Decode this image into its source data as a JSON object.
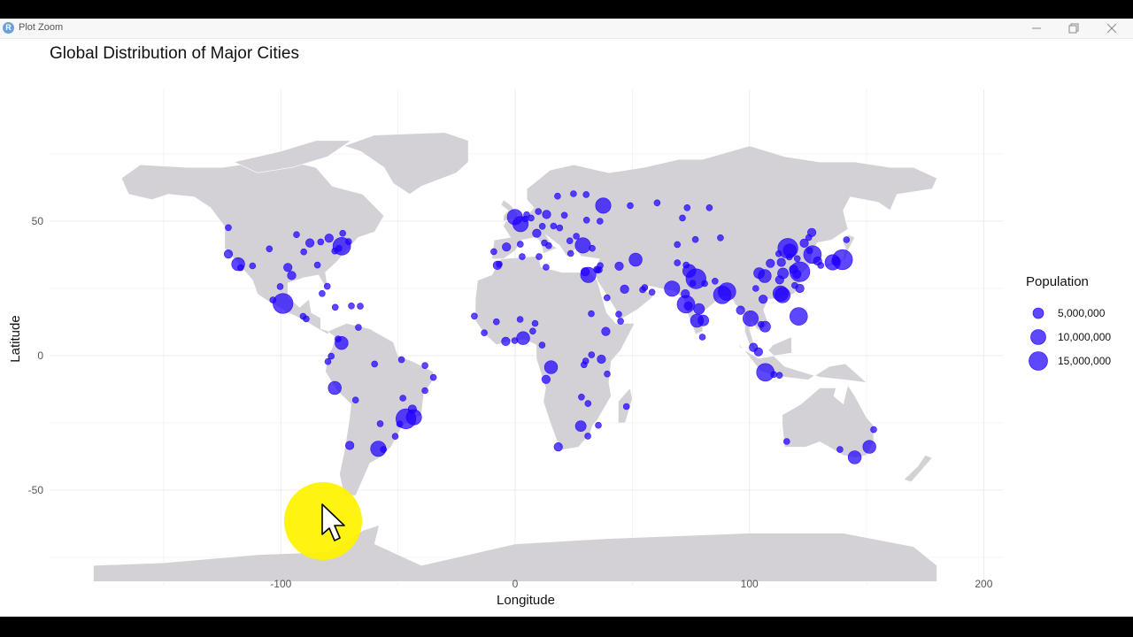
{
  "window": {
    "title": "Plot Zoom",
    "app_icon": "R",
    "controls": [
      "minimize-icon",
      "restore-icon",
      "close-icon"
    ]
  },
  "colors": {
    "land": "#d3d1d6",
    "city": "#1f00ff",
    "grid": "#ebebeb",
    "highlight": "#fff200"
  },
  "chart_data": {
    "type": "scatter",
    "title": "Global Distribution of Major Cities",
    "xlabel": "Longitude",
    "ylabel": "Latitude",
    "xlim": [
      -170,
      210
    ],
    "ylim": [
      -90,
      90
    ],
    "x_ticks": [
      -100,
      0,
      100,
      200
    ],
    "y_ticks": [
      50,
      0,
      -50
    ],
    "x_tick_labels": [
      "-100",
      "0",
      "100",
      "200"
    ],
    "y_tick_labels": [
      "50",
      "0",
      "-50"
    ],
    "grid": true,
    "legend": {
      "title": "Population",
      "placement": "right",
      "entries": [
        {
          "label": "5,000,000",
          "size": 5000000
        },
        {
          "label": "10,000,000",
          "size": 10000000
        },
        {
          "label": "15,000,000",
          "size": 15000000
        }
      ]
    },
    "points": [
      [
        -122.4,
        47.6,
        1
      ],
      [
        -118.2,
        34.0,
        4
      ],
      [
        -122.4,
        37.8,
        2
      ],
      [
        -117.2,
        32.7,
        1
      ],
      [
        -112.1,
        33.4,
        1
      ],
      [
        -104.9,
        39.7,
        1
      ],
      [
        -97.0,
        32.8,
        2
      ],
      [
        -95.4,
        29.8,
        2
      ],
      [
        -87.6,
        41.9,
        2
      ],
      [
        -84.4,
        33.7,
        1
      ],
      [
        -80.2,
        25.8,
        1
      ],
      [
        -79.4,
        43.7,
        2
      ],
      [
        -73.6,
        45.5,
        1
      ],
      [
        -74.0,
        40.7,
        6
      ],
      [
        -75.2,
        39.9,
        1
      ],
      [
        -77.0,
        38.9,
        1
      ],
      [
        -71.1,
        42.4,
        1
      ],
      [
        -83.0,
        42.3,
        1
      ],
      [
        -93.3,
        45.0,
        1
      ],
      [
        -90.2,
        38.6,
        1
      ],
      [
        -99.1,
        19.4,
        7
      ],
      [
        -103.4,
        20.7,
        1
      ],
      [
        -100.3,
        25.7,
        1
      ],
      [
        -89.2,
        13.7,
        1
      ],
      [
        -90.5,
        14.6,
        1
      ],
      [
        -82.4,
        23.1,
        1
      ],
      [
        -76.8,
        18.0,
        1
      ],
      [
        -69.9,
        18.5,
        1
      ],
      [
        -66.1,
        18.4,
        1
      ],
      [
        -74.1,
        4.7,
        4
      ],
      [
        -75.6,
        6.2,
        1
      ],
      [
        -66.9,
        10.5,
        1
      ],
      [
        -78.5,
        -0.2,
        1
      ],
      [
        -79.9,
        -2.2,
        1
      ],
      [
        -77.0,
        -12.0,
        4
      ],
      [
        -68.1,
        -16.5,
        1
      ],
      [
        -57.6,
        -25.3,
        1
      ],
      [
        -70.6,
        -33.4,
        2
      ],
      [
        -58.4,
        -34.6,
        5
      ],
      [
        -56.2,
        -34.9,
        1
      ],
      [
        -43.2,
        -22.9,
        5
      ],
      [
        -46.6,
        -23.5,
        7
      ],
      [
        -49.3,
        -25.4,
        1
      ],
      [
        -47.9,
        -15.8,
        1
      ],
      [
        -38.5,
        -13.0,
        1
      ],
      [
        -34.9,
        -8.1,
        1
      ],
      [
        -38.5,
        -3.7,
        1
      ],
      [
        -60.0,
        -3.1,
        1
      ],
      [
        -48.5,
        -1.5,
        1
      ],
      [
        -43.9,
        -19.9,
        2
      ],
      [
        -51.2,
        -30.0,
        1
      ],
      [
        -0.1,
        51.5,
        5
      ],
      [
        2.3,
        48.9,
        5
      ],
      [
        -3.7,
        40.4,
        2
      ],
      [
        2.2,
        41.4,
        1
      ],
      [
        -9.1,
        38.7,
        1
      ],
      [
        4.9,
        52.4,
        1
      ],
      [
        4.4,
        50.8,
        1
      ],
      [
        6.8,
        51.2,
        1
      ],
      [
        13.4,
        52.5,
        2
      ],
      [
        9.9,
        53.6,
        1
      ],
      [
        11.6,
        48.1,
        1
      ],
      [
        12.5,
        41.9,
        1
      ],
      [
        9.2,
        45.5,
        2
      ],
      [
        14.3,
        40.9,
        1
      ],
      [
        16.4,
        48.2,
        1
      ],
      [
        19.0,
        47.5,
        1
      ],
      [
        21.0,
        52.2,
        1
      ],
      [
        18.1,
        59.3,
        1
      ],
      [
        24.9,
        60.2,
        1
      ],
      [
        30.3,
        59.9,
        1
      ],
      [
        37.6,
        55.8,
        5
      ],
      [
        28.9,
        41.0,
        5
      ],
      [
        32.9,
        39.9,
        1
      ],
      [
        26.1,
        44.4,
        1
      ],
      [
        23.3,
        42.7,
        1
      ],
      [
        23.7,
        38.0,
        1
      ],
      [
        30.5,
        50.4,
        1
      ],
      [
        36.2,
        50.0,
        1
      ],
      [
        49.1,
        55.8,
        1
      ],
      [
        60.6,
        56.8,
        1
      ],
      [
        73.4,
        55.0,
        1
      ],
      [
        82.9,
        55.0,
        1
      ],
      [
        -6.8,
        34.0,
        1
      ],
      [
        -7.6,
        33.6,
        2
      ],
      [
        3.0,
        36.8,
        1
      ],
      [
        10.2,
        36.8,
        1
      ],
      [
        13.2,
        32.9,
        1
      ],
      [
        31.2,
        30.0,
        5
      ],
      [
        29.9,
        31.2,
        2
      ],
      [
        35.2,
        31.8,
        1
      ],
      [
        34.8,
        32.1,
        1
      ],
      [
        36.3,
        33.5,
        1
      ],
      [
        35.9,
        31.9,
        1
      ],
      [
        44.4,
        33.3,
        2
      ],
      [
        51.4,
        35.7,
        4
      ],
      [
        46.7,
        24.7,
        2
      ],
      [
        39.2,
        21.5,
        1
      ],
      [
        55.3,
        25.3,
        1
      ],
      [
        54.4,
        24.5,
        1
      ],
      [
        58.4,
        23.6,
        1
      ],
      [
        44.2,
        15.4,
        1
      ],
      [
        45.0,
        12.8,
        1
      ],
      [
        38.7,
        9.0,
        2
      ],
      [
        32.5,
        15.6,
        1
      ],
      [
        36.8,
        -1.3,
        2
      ],
      [
        39.3,
        -6.8,
        1
      ],
      [
        32.6,
        0.3,
        1
      ],
      [
        29.4,
        -3.4,
        1
      ],
      [
        30.1,
        -2.0,
        1
      ],
      [
        15.3,
        -4.3,
        4
      ],
      [
        13.2,
        -8.8,
        2
      ],
      [
        3.4,
        6.5,
        4
      ],
      [
        -0.2,
        5.6,
        1
      ],
      [
        -4.0,
        5.3,
        2
      ],
      [
        -17.4,
        14.7,
        1
      ],
      [
        -13.2,
        8.5,
        1
      ],
      [
        -8.0,
        12.6,
        1
      ],
      [
        2.1,
        13.5,
        1
      ],
      [
        7.5,
        9.1,
        1
      ],
      [
        8.5,
        12.0,
        1
      ],
      [
        11.5,
        3.9,
        1
      ],
      [
        28.0,
        -26.2,
        3
      ],
      [
        18.4,
        -33.9,
        2
      ],
      [
        31.0,
        -29.9,
        1
      ],
      [
        28.3,
        -15.4,
        1
      ],
      [
        31.1,
        -17.8,
        1
      ],
      [
        47.5,
        -18.9,
        1
      ],
      [
        35.5,
        -25.9,
        1
      ],
      [
        67.0,
        24.9,
        5
      ],
      [
        74.3,
        31.5,
        4
      ],
      [
        73.0,
        33.7,
        1
      ],
      [
        69.2,
        34.5,
        1
      ],
      [
        77.2,
        28.6,
        7
      ],
      [
        72.9,
        19.1,
        6
      ],
      [
        88.4,
        22.6,
        6
      ],
      [
        80.3,
        13.1,
        3
      ],
      [
        77.6,
        13.0,
        4
      ],
      [
        78.5,
        17.4,
        3
      ],
      [
        72.6,
        23.0,
        2
      ],
      [
        73.9,
        18.5,
        2
      ],
      [
        80.9,
        26.8,
        1
      ],
      [
        75.8,
        26.9,
        1
      ],
      [
        85.3,
        27.7,
        1
      ],
      [
        90.4,
        23.8,
        6
      ],
      [
        79.9,
        6.9,
        1
      ],
      [
        96.2,
        16.9,
        2
      ],
      [
        100.5,
        13.8,
        5
      ],
      [
        106.7,
        10.8,
        3
      ],
      [
        105.8,
        21.0,
        2
      ],
      [
        104.9,
        11.6,
        1
      ],
      [
        101.7,
        3.1,
        2
      ],
      [
        103.8,
        1.4,
        2
      ],
      [
        106.8,
        -6.2,
        6
      ],
      [
        112.8,
        -7.3,
        1
      ],
      [
        110.4,
        -7.0,
        1
      ],
      [
        121.0,
        14.6,
        6
      ],
      [
        116.4,
        39.9,
        7
      ],
      [
        117.2,
        39.1,
        4
      ],
      [
        121.5,
        31.2,
        7
      ],
      [
        113.3,
        23.1,
        5
      ],
      [
        114.1,
        22.5,
        5
      ],
      [
        114.3,
        30.6,
        3
      ],
      [
        104.1,
        30.7,
        3
      ],
      [
        106.5,
        29.6,
        4
      ],
      [
        108.9,
        34.3,
        2
      ],
      [
        113.6,
        34.7,
        2
      ],
      [
        118.8,
        32.1,
        2
      ],
      [
        120.2,
        30.3,
        2
      ],
      [
        123.4,
        41.8,
        2
      ],
      [
        125.3,
        43.9,
        1
      ],
      [
        126.6,
        45.8,
        2
      ],
      [
        112.5,
        37.9,
        1
      ],
      [
        117.0,
        36.7,
        1
      ],
      [
        120.4,
        36.1,
        1
      ],
      [
        119.3,
        26.1,
        1
      ],
      [
        112.9,
        28.2,
        2
      ],
      [
        102.7,
        25.0,
        1
      ],
      [
        121.5,
        25.0,
        2
      ],
      [
        126.9,
        37.6,
        6
      ],
      [
        129.1,
        35.2,
        2
      ],
      [
        125.7,
        39.0,
        1
      ],
      [
        139.7,
        35.7,
        7
      ],
      [
        135.5,
        34.7,
        5
      ],
      [
        136.9,
        35.2,
        2
      ],
      [
        141.4,
        43.1,
        1
      ],
      [
        130.4,
        33.6,
        1
      ],
      [
        87.6,
        43.8,
        1
      ],
      [
        71.4,
        51.2,
        1
      ],
      [
        69.2,
        41.3,
        1
      ],
      [
        76.9,
        43.2,
        1
      ],
      [
        151.2,
        -33.9,
        4
      ],
      [
        144.9,
        -37.8,
        4
      ],
      [
        153.0,
        -27.5,
        1
      ],
      [
        115.9,
        -31.9,
        1
      ],
      [
        138.6,
        -34.9,
        1
      ]
    ]
  },
  "overlay": {
    "highlight_circle": "cursor-highlight",
    "cursor": "mouse-pointer-icon"
  }
}
